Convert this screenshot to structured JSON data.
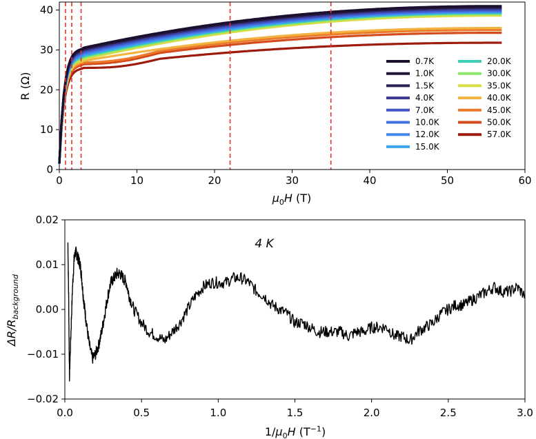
{
  "chart_data": [
    {
      "type": "line",
      "xlabel_main": "μ",
      "xlabel_sub": "0",
      "xlabel_rest": "H (T)",
      "ylabel": "R (Ω)",
      "xlim": [
        0,
        60
      ],
      "ylim": [
        0,
        42
      ],
      "xticks": [
        0,
        10,
        20,
        30,
        40,
        50,
        60
      ],
      "yticks": [
        0,
        10,
        20,
        30,
        40
      ],
      "grid": false,
      "legend_position": "bottom-right",
      "vlines": [
        0.8,
        1.6,
        2.8,
        22.0,
        35.0
      ],
      "vline_color": "#e8302a",
      "series": [
        {
          "name": "0.7K",
          "color": "#1a0f2e",
          "knee": 30.5,
          "end": 41.0
        },
        {
          "name": "1.0K",
          "color": "#221638",
          "knee": 30.3,
          "end": 40.8
        },
        {
          "name": "1.5K",
          "color": "#2c1f55",
          "knee": 30.1,
          "end": 40.6
        },
        {
          "name": "4.0K",
          "color": "#3a3a8f",
          "knee": 29.8,
          "end": 40.3
        },
        {
          "name": "7.0K",
          "color": "#3f56c6",
          "knee": 29.5,
          "end": 40.0
        },
        {
          "name": "10.0K",
          "color": "#4370e0",
          "knee": 29.2,
          "end": 39.8
        },
        {
          "name": "12.0K",
          "color": "#4689ec",
          "knee": 28.9,
          "end": 39.6
        },
        {
          "name": "15.0K",
          "color": "#3fa4ee",
          "knee": 28.6,
          "end": 39.4
        },
        {
          "name": "20.0K",
          "color": "#3ccfb5",
          "knee": 28.3,
          "end": 39.2
        },
        {
          "name": "30.0K",
          "color": "#8ee66b",
          "knee": 28.0,
          "end": 39.0
        },
        {
          "name": "35.0K",
          "color": "#d6dd45",
          "knee": 27.6,
          "end": 38.6
        },
        {
          "name": "40.0K",
          "color": "#f3b340",
          "knee": 27.2,
          "end": 35.5
        },
        {
          "name": "45.0K",
          "color": "#ec7a2c",
          "knee": 26.8,
          "end": 35.0
        },
        {
          "name": "50.0K",
          "color": "#d44c1c",
          "knee": 26.4,
          "end": 34.3
        },
        {
          "name": "57.0K",
          "color": "#9e1a0c",
          "knee": 25.5,
          "end": 31.8
        }
      ]
    },
    {
      "type": "line",
      "xlabel": "1/μ0H (T⁻¹)",
      "ylabel_main": "ΔR/R",
      "ylabel_sub": "background",
      "annotation": "4 K",
      "xlim": [
        0.0,
        3.0
      ],
      "ylim": [
        -0.02,
        0.02
      ],
      "xticks": [
        "0.0",
        "0.5",
        "1.0",
        "1.5",
        "2.0",
        "2.5",
        "3.0"
      ],
      "yticks": [
        "0.02",
        "0.01",
        "0.00",
        "−0.01",
        "−0.02"
      ],
      "grid": false,
      "series": [
        {
          "name": "4 K",
          "color": "#000000",
          "x": [
            0.02,
            0.025,
            0.03,
            0.04,
            0.05,
            0.06,
            0.07,
            0.08,
            0.09,
            0.1,
            0.11,
            0.12,
            0.13,
            0.14,
            0.16,
            0.18,
            0.2,
            0.22,
            0.24,
            0.26,
            0.28,
            0.3,
            0.32,
            0.34,
            0.36,
            0.38,
            0.4,
            0.42,
            0.45,
            0.5,
            0.55,
            0.6,
            0.65,
            0.7,
            0.75,
            0.8,
            0.85,
            0.9,
            0.95,
            1.0,
            1.05,
            1.1,
            1.15,
            1.2,
            1.25,
            1.3,
            1.35,
            1.4,
            1.45,
            1.5,
            1.55,
            1.6,
            1.65,
            1.7,
            1.75,
            1.8,
            1.85,
            1.9,
            1.95,
            2.0,
            2.05,
            2.1,
            2.15,
            2.2,
            2.25,
            2.3,
            2.35,
            2.4,
            2.45,
            2.5,
            2.55,
            2.6,
            2.65,
            2.7,
            2.75,
            2.8,
            2.85,
            2.9,
            2.95,
            3.0
          ],
          "y": [
            0.015,
            0.002,
            -0.015,
            -0.005,
            0.005,
            0.011,
            0.013,
            0.012,
            0.011,
            0.01,
            0.007,
            0.003,
            0.0,
            -0.003,
            -0.008,
            -0.011,
            -0.01,
            -0.008,
            -0.005,
            -0.001,
            0.003,
            0.006,
            0.007,
            0.008,
            0.008,
            0.007,
            0.006,
            0.003,
            0.0,
            -0.003,
            -0.005,
            -0.006,
            -0.007,
            -0.005,
            -0.003,
            0.0,
            0.003,
            0.005,
            0.006,
            0.006,
            0.006,
            0.007,
            0.007,
            0.006,
            0.004,
            0.003,
            0.001,
            0.0,
            -0.001,
            -0.003,
            -0.003,
            -0.004,
            -0.005,
            -0.005,
            -0.005,
            -0.005,
            -0.006,
            -0.005,
            -0.005,
            -0.004,
            -0.004,
            -0.004,
            -0.006,
            -0.006,
            -0.007,
            -0.005,
            -0.004,
            -0.003,
            -0.001,
            0.0,
            0.001,
            0.001,
            0.002,
            0.003,
            0.004,
            0.005,
            0.004,
            0.004,
            0.005,
            0.003
          ]
        }
      ]
    }
  ]
}
